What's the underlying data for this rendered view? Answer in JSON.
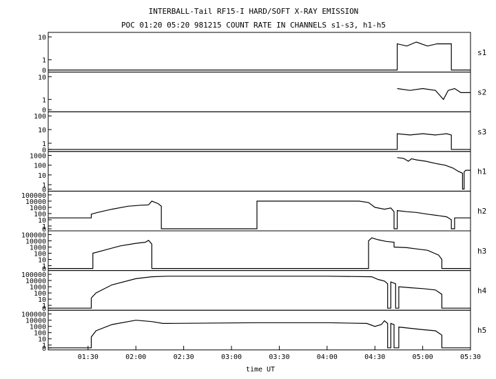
{
  "chart_data": {
    "type": "line",
    "title": "INTERBALL-Tail RF15-I HARD/SOFT X-RAY EMISSION",
    "subtitle": "POC 01:20 05:20 981215  COUNT RATE IN CHANNELS s1-s3, h1-h5",
    "xlabel": "time UT",
    "x_ticks": [
      "01:30",
      "02:00",
      "02:30",
      "03:00",
      "03:30",
      "04:00",
      "04:30",
      "05:00",
      "05:30"
    ],
    "x_range": [
      "01:05",
      "05:30"
    ],
    "y_scale": "log",
    "grid": false,
    "panels": [
      {
        "name": "s1",
        "y_ticks": [
          "10",
          "1",
          "0"
        ],
        "series": [
          [
            "01:05",
            0
          ],
          [
            "04:44",
            0
          ],
          [
            "04:44",
            5
          ],
          [
            "04:50",
            4
          ],
          [
            "04:56",
            6
          ],
          [
            "05:03",
            4
          ],
          [
            "05:09",
            5
          ],
          [
            "05:15",
            5
          ],
          [
            "05:18",
            5
          ],
          [
            "05:18",
            0
          ],
          [
            "05:30",
            0
          ]
        ]
      },
      {
        "name": "s2",
        "y_ticks": [
          "10",
          "1",
          "0"
        ],
        "series": [
          [
            "04:44",
            3
          ],
          [
            "04:52",
            2.5
          ],
          [
            "05:00",
            3
          ],
          [
            "05:08",
            2.5
          ],
          [
            "05:13",
            1
          ],
          [
            "05:16",
            2.5
          ],
          [
            "05:20",
            3
          ],
          [
            "05:24",
            2
          ],
          [
            "05:30",
            2
          ]
        ]
      },
      {
        "name": "s3",
        "y_ticks": [
          "100",
          "10",
          "1",
          "0"
        ],
        "series": [
          [
            "01:05",
            0
          ],
          [
            "04:44",
            0
          ],
          [
            "04:44",
            5
          ],
          [
            "04:52",
            4
          ],
          [
            "05:00",
            5
          ],
          [
            "05:08",
            4
          ],
          [
            "05:15",
            5
          ],
          [
            "05:18",
            4
          ],
          [
            "05:18",
            0
          ],
          [
            "05:30",
            0
          ]
        ]
      },
      {
        "name": "h1",
        "y_ticks": [
          "1000",
          "100",
          "10",
          "1",
          "0"
        ],
        "series": [
          [
            "04:44",
            600
          ],
          [
            "04:48",
            500
          ],
          [
            "04:51",
            250
          ],
          [
            "04:53",
            450
          ],
          [
            "04:56",
            350
          ],
          [
            "05:02",
            250
          ],
          [
            "05:08",
            150
          ],
          [
            "05:14",
            100
          ],
          [
            "05:19",
            50
          ],
          [
            "05:22",
            25
          ],
          [
            "05:25",
            15
          ],
          [
            "05:25",
            0
          ],
          [
            "05:26",
            0
          ],
          [
            "05:26",
            20
          ],
          [
            "05:27",
            30
          ],
          [
            "05:30",
            30
          ]
        ]
      },
      {
        "name": "h2",
        "y_ticks": [
          "100000",
          "10000",
          "1000",
          "100",
          "10",
          "1",
          "0"
        ],
        "series": [
          [
            "01:05",
            20
          ],
          [
            "01:32",
            20
          ],
          [
            "01:32",
            80
          ],
          [
            "01:36",
            150
          ],
          [
            "01:45",
            500
          ],
          [
            "01:55",
            1500
          ],
          [
            "02:03",
            2200
          ],
          [
            "02:08",
            2500
          ],
          [
            "02:10",
            10000
          ],
          [
            "02:14",
            4000
          ],
          [
            "02:16",
            1500
          ],
          [
            "02:16",
            0
          ],
          [
            "03:16",
            0
          ],
          [
            "03:16",
            10000
          ],
          [
            "03:50",
            10000
          ],
          [
            "04:20",
            10000
          ],
          [
            "04:26",
            6000
          ],
          [
            "04:30",
            1000
          ],
          [
            "04:36",
            500
          ],
          [
            "04:40",
            800
          ],
          [
            "04:42",
            200
          ],
          [
            "04:42",
            0
          ],
          [
            "04:44",
            0
          ],
          [
            "04:44",
            300
          ],
          [
            "04:50",
            200
          ],
          [
            "04:56",
            150
          ],
          [
            "05:03",
            80
          ],
          [
            "05:09",
            50
          ],
          [
            "05:15",
            30
          ],
          [
            "05:18",
            10
          ],
          [
            "05:18",
            0
          ],
          [
            "05:20",
            0
          ],
          [
            "05:20",
            20
          ],
          [
            "05:30",
            20
          ]
        ]
      },
      {
        "name": "h3",
        "y_ticks": [
          "100000",
          "10000",
          "1000",
          "100",
          "10",
          "1",
          "0"
        ],
        "series": [
          [
            "01:05",
            0
          ],
          [
            "01:33",
            0
          ],
          [
            "01:33",
            100
          ],
          [
            "01:40",
            300
          ],
          [
            "01:50",
            1500
          ],
          [
            "02:00",
            4000
          ],
          [
            "02:06",
            6000
          ],
          [
            "02:08",
            12000
          ],
          [
            "02:10",
            3000
          ],
          [
            "02:10",
            0
          ],
          [
            "04:26",
            0
          ],
          [
            "04:26",
            10000
          ],
          [
            "04:28",
            30000
          ],
          [
            "04:32",
            15000
          ],
          [
            "04:37",
            8000
          ],
          [
            "04:42",
            6000
          ],
          [
            "04:42",
            1000
          ],
          [
            "04:50",
            800
          ],
          [
            "04:56",
            500
          ],
          [
            "05:03",
            300
          ],
          [
            "05:10",
            50
          ],
          [
            "05:12",
            10
          ],
          [
            "05:12",
            0
          ],
          [
            "05:30",
            0
          ]
        ]
      },
      {
        "name": "h4",
        "y_ticks": [
          "100000",
          "10000",
          "1000",
          "100",
          "10",
          "1",
          "0"
        ],
        "series": [
          [
            "01:05",
            0
          ],
          [
            "01:32",
            0
          ],
          [
            "01:32",
            15
          ],
          [
            "01:35",
            100
          ],
          [
            "01:45",
            2000
          ],
          [
            "02:00",
            20000
          ],
          [
            "02:10",
            40000
          ],
          [
            "02:20",
            50000
          ],
          [
            "03:00",
            50000
          ],
          [
            "04:00",
            50000
          ],
          [
            "04:28",
            40000
          ],
          [
            "04:32",
            15000
          ],
          [
            "04:36",
            8000
          ],
          [
            "04:38",
            3000
          ],
          [
            "04:38",
            0
          ],
          [
            "04:40",
            0
          ],
          [
            "04:40",
            6000
          ],
          [
            "04:43",
            3000
          ],
          [
            "04:43",
            0
          ],
          [
            "04:45",
            0
          ],
          [
            "04:45",
            1000
          ],
          [
            "04:52",
            700
          ],
          [
            "05:00",
            500
          ],
          [
            "05:08",
            300
          ],
          [
            "05:12",
            60
          ],
          [
            "05:12",
            0
          ],
          [
            "05:30",
            0
          ]
        ]
      },
      {
        "name": "h5",
        "y_ticks": [
          "100000",
          "10000",
          "1000",
          "100",
          "10",
          "1",
          "0"
        ],
        "series": [
          [
            "01:05",
            0
          ],
          [
            "01:32",
            0
          ],
          [
            "01:32",
            20
          ],
          [
            "01:35",
            200
          ],
          [
            "01:45",
            2000
          ],
          [
            "02:00",
            10000
          ],
          [
            "02:10",
            6000
          ],
          [
            "02:17",
            3000
          ],
          [
            "02:20",
            3000
          ],
          [
            "03:16",
            4000
          ],
          [
            "04:00",
            4000
          ],
          [
            "04:25",
            3000
          ],
          [
            "04:30",
            1000
          ],
          [
            "04:34",
            2000
          ],
          [
            "04:36",
            8000
          ],
          [
            "04:38",
            3000
          ],
          [
            "04:38",
            0
          ],
          [
            "04:40",
            0
          ],
          [
            "04:40",
            3000
          ],
          [
            "04:42",
            2000
          ],
          [
            "04:42",
            0
          ],
          [
            "04:45",
            0
          ],
          [
            "04:45",
            800
          ],
          [
            "04:52",
            500
          ],
          [
            "05:00",
            300
          ],
          [
            "05:08",
            200
          ],
          [
            "05:12",
            40
          ],
          [
            "05:12",
            0
          ],
          [
            "05:30",
            0
          ]
        ]
      }
    ]
  }
}
